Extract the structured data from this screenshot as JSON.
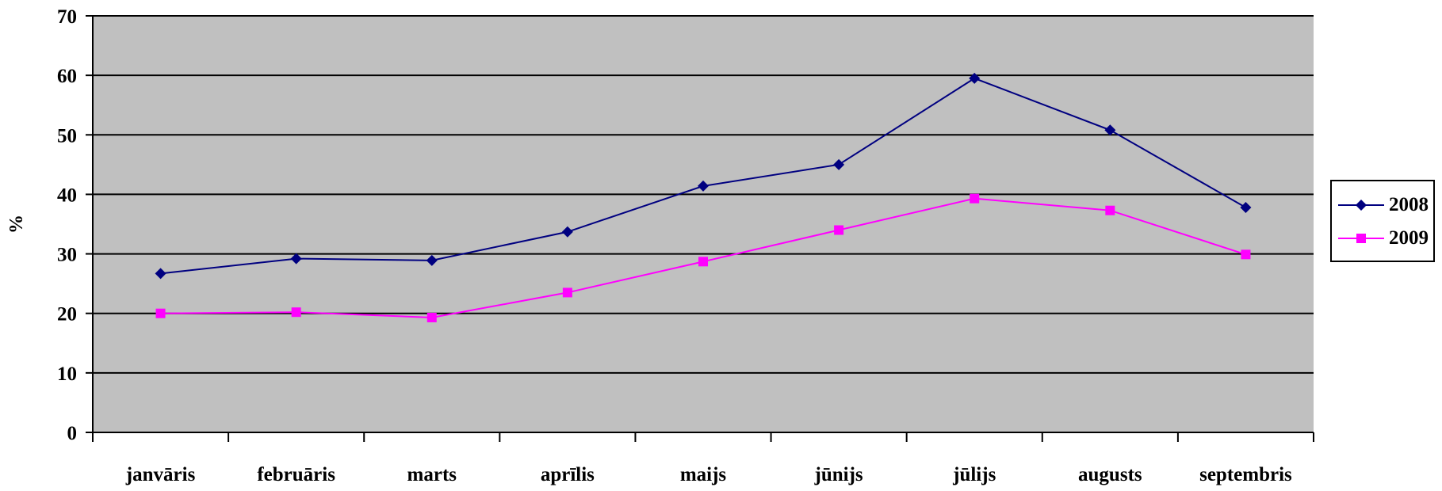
{
  "chart_data": {
    "type": "line",
    "title": "",
    "xlabel": "",
    "ylabel": "%",
    "ylim": [
      0,
      70
    ],
    "yticks": [
      0,
      10,
      20,
      30,
      40,
      50,
      60,
      70
    ],
    "grid": true,
    "legend_position": "right",
    "plot_background": "#c0c0c0",
    "categories": [
      "janvāris",
      "februāris",
      "marts",
      "aprīlis",
      "maijs",
      "jūnijs",
      "jūlijs",
      "augusts",
      "septembris"
    ],
    "series": [
      {
        "name": "2008",
        "color": "#000080",
        "marker": "diamond",
        "values": [
          26.7,
          29.2,
          28.9,
          33.7,
          41.4,
          45.0,
          59.5,
          50.8,
          37.8
        ]
      },
      {
        "name": "2009",
        "color": "#ff00ff",
        "marker": "square",
        "values": [
          20.0,
          20.2,
          19.3,
          23.5,
          28.7,
          34.0,
          39.3,
          37.3,
          29.9
        ]
      }
    ]
  }
}
